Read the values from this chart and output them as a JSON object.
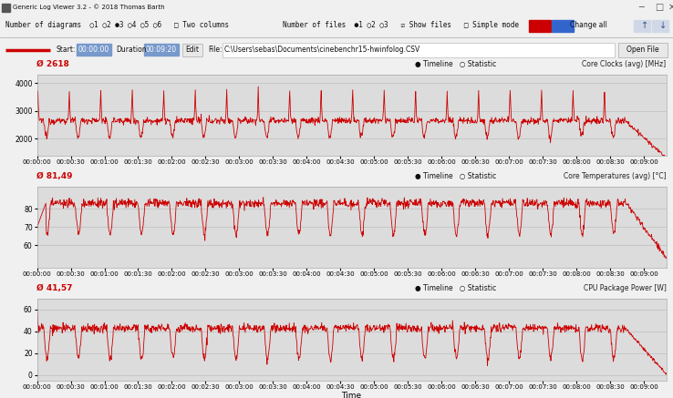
{
  "title": "Generic Log Viewer 3.2 - © 2018 Thomas Barth",
  "bg_color": "#f0f0f0",
  "plot_bg_color": "#dcdcdc",
  "line_color": "#cc0000",
  "charts": [
    {
      "avg_label": "Ø 2618",
      "ylabel_right": "Core Clocks (avg) [MHz]",
      "ylim": [
        1400,
        4300
      ],
      "yticks": [
        2000,
        3000,
        4000
      ],
      "pattern": "clock"
    },
    {
      "avg_label": "Ø 81,49",
      "ylabel_right": "Core Temperatures (avg) [°C]",
      "ylim": [
        48,
        92
      ],
      "yticks": [
        60,
        70,
        80
      ],
      "pattern": "temp"
    },
    {
      "avg_label": "Ø 41,57",
      "ylabel_right": "CPU Package Power [W]",
      "ylim": [
        -5,
        70
      ],
      "yticks": [
        0,
        20,
        40,
        60
      ],
      "pattern": "power"
    }
  ],
  "time_total_seconds": 560,
  "xtick_interval_seconds": 30,
  "time_label": "Time"
}
